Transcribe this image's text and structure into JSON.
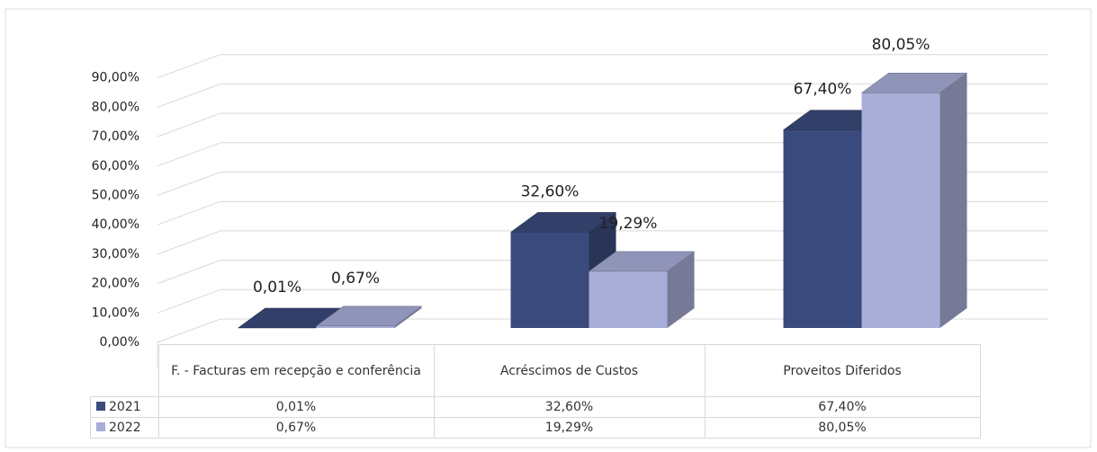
{
  "chart_data": {
    "type": "bar3d",
    "categories": [
      "F. - Facturas em recepção e conferência",
      "Acréscimos de Custos",
      "Proveitos Diferidos"
    ],
    "series": [
      {
        "name": "2021",
        "color": "#3b4a7c",
        "values": [
          0.01,
          32.6,
          67.4
        ],
        "value_labels": [
          "0,01%",
          "32,60%",
          "67,40%"
        ]
      },
      {
        "name": "2022",
        "color": "#a8aed8",
        "values": [
          0.67,
          19.29,
          80.05
        ],
        "value_labels": [
          "0,67%",
          "19,29%",
          "80,05%"
        ]
      }
    ],
    "ylim": [
      0,
      100
    ],
    "yticks": [
      {
        "value": 0,
        "label": "0,00%"
      },
      {
        "value": 10,
        "label": "10,00%"
      },
      {
        "value": 20,
        "label": "20,00%"
      },
      {
        "value": 30,
        "label": "30,00%"
      },
      {
        "value": 40,
        "label": "40,00%"
      },
      {
        "value": 50,
        "label": "50,00%"
      },
      {
        "value": 60,
        "label": "60,00%"
      },
      {
        "value": 70,
        "label": "70,00%"
      },
      {
        "value": 80,
        "label": "80,00%"
      },
      {
        "value": 90,
        "label": "90,00%"
      }
    ],
    "grid": true
  }
}
